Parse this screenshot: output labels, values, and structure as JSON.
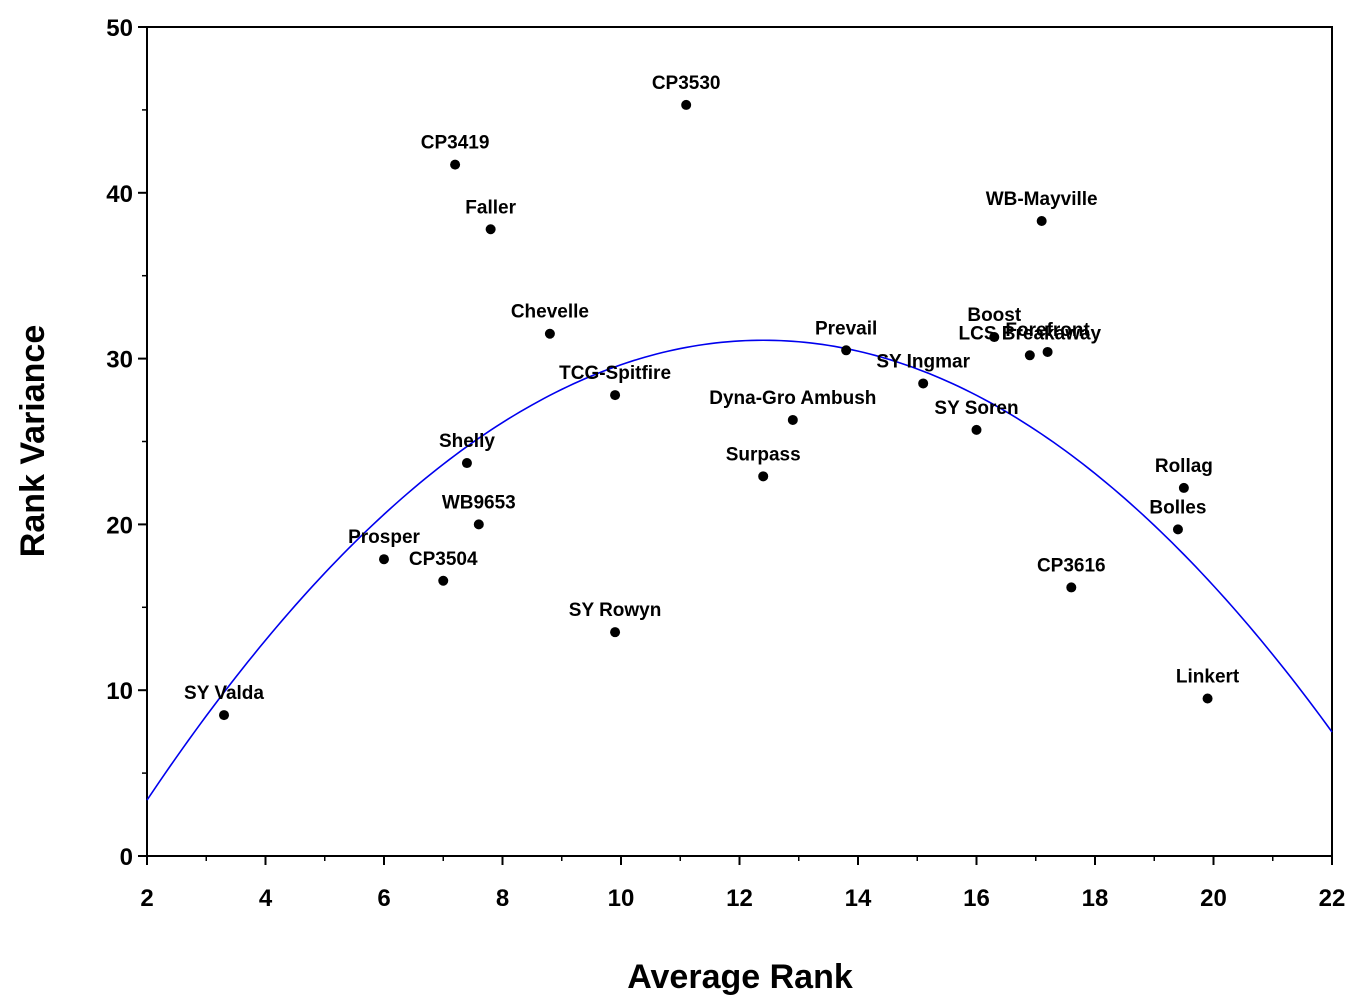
{
  "chart_data": {
    "type": "scatter",
    "title": "",
    "xlabel": "Average Rank",
    "ylabel": "Rank Variance",
    "xlim": [
      2,
      22
    ],
    "ylim": [
      0,
      50
    ],
    "xticks": [
      "2",
      "4",
      "6",
      "8",
      "10",
      "12",
      "14",
      "16",
      "18",
      "20",
      "22"
    ],
    "yticks": [
      "0",
      "10",
      "20",
      "30",
      "40",
      "50"
    ],
    "grid": false,
    "legend": "none",
    "points": [
      {
        "label": "SY Valda",
        "x": 3.3,
        "y": 8.5
      },
      {
        "label": "Prosper",
        "x": 6.0,
        "y": 17.9
      },
      {
        "label": "CP3504",
        "x": 7.0,
        "y": 16.6
      },
      {
        "label": "CP3419",
        "x": 7.2,
        "y": 41.7
      },
      {
        "label": "Shelly",
        "x": 7.4,
        "y": 23.7
      },
      {
        "label": "WB9653",
        "x": 7.6,
        "y": 20.0
      },
      {
        "label": "Faller",
        "x": 7.8,
        "y": 37.8
      },
      {
        "label": "Chevelle",
        "x": 8.8,
        "y": 31.5
      },
      {
        "label": "TCG-Spitfire",
        "x": 9.9,
        "y": 27.8
      },
      {
        "label": "SY Rowyn",
        "x": 9.9,
        "y": 13.5
      },
      {
        "label": "CP3530",
        "x": 11.1,
        "y": 45.3
      },
      {
        "label": "Surpass",
        "x": 12.4,
        "y": 22.9
      },
      {
        "label": "Dyna-Gro Ambush",
        "x": 12.9,
        "y": 26.3
      },
      {
        "label": "Prevail",
        "x": 13.8,
        "y": 30.5
      },
      {
        "label": "SY Ingmar",
        "x": 15.1,
        "y": 28.5
      },
      {
        "label": "SY Soren",
        "x": 16.0,
        "y": 25.7
      },
      {
        "label": "Boost",
        "x": 16.3,
        "y": 31.3
      },
      {
        "label": "LCS Breakaway",
        "x": 16.9,
        "y": 30.2
      },
      {
        "label": "Forefront",
        "x": 17.2,
        "y": 30.4
      },
      {
        "label": "WB-Mayville",
        "x": 17.1,
        "y": 38.3
      },
      {
        "label": "CP3616",
        "x": 17.6,
        "y": 16.2
      },
      {
        "label": "Bolles",
        "x": 19.4,
        "y": 19.7
      },
      {
        "label": "Rollag",
        "x": 19.5,
        "y": 22.2
      },
      {
        "label": "Linkert",
        "x": 19.9,
        "y": 9.5
      }
    ],
    "fit_curve": {
      "type": "quadratic",
      "x": [
        2,
        4,
        6,
        8,
        10,
        12,
        12.4,
        14,
        16,
        18,
        20,
        22
      ],
      "y": [
        3.4,
        13.1,
        20.9,
        26.7,
        30.4,
        31.7,
        31.8,
        31.0,
        28.3,
        23.6,
        16.8,
        8.0
      ],
      "color": "#0000ee"
    },
    "point_color": "#000000"
  }
}
